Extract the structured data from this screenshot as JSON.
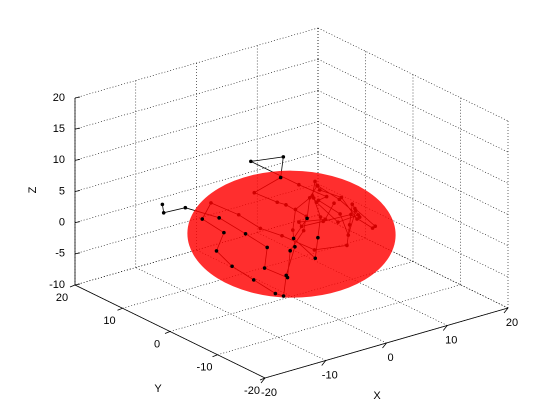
{
  "chart_data": {
    "type": "line3d",
    "xlabel": "X",
    "ylabel": "Y",
    "zlabel": "Z",
    "x": [
      -15,
      -14,
      -12,
      -8,
      -6,
      -4,
      -6,
      -3,
      -1,
      2,
      4,
      3,
      0,
      -3,
      -1,
      1,
      -2,
      2,
      5,
      6,
      8,
      7,
      9,
      11,
      10,
      8,
      6,
      4,
      2,
      0,
      -2,
      1,
      3,
      5,
      7,
      9,
      10,
      12,
      11,
      9,
      7,
      5,
      3,
      1,
      -1,
      -4,
      -6,
      -5,
      -7,
      -9,
      -10,
      -8,
      -10,
      -7,
      -4,
      -2,
      0,
      3,
      6,
      8,
      10,
      12,
      13,
      11,
      9,
      6,
      4,
      2,
      4,
      7
    ],
    "y": [
      8,
      9,
      7,
      5,
      2,
      0,
      -2,
      -3,
      -1,
      0,
      2,
      5,
      3,
      4,
      1,
      3,
      6,
      1,
      -1,
      2,
      0,
      -3,
      -2,
      0,
      3,
      5,
      3,
      -1,
      -3,
      -5,
      -3,
      -2,
      0,
      1,
      3,
      1,
      -1,
      1,
      4,
      6,
      4,
      2,
      3,
      1,
      -2,
      -4,
      -6,
      -3,
      -1,
      1,
      3,
      4,
      6,
      8,
      6,
      4,
      2,
      -1,
      -4,
      -2,
      0,
      2,
      -1,
      -3,
      -1,
      1,
      3,
      1,
      -2,
      0
    ],
    "z": [
      6,
      4,
      5,
      3,
      1,
      -1,
      -3,
      -5,
      -2,
      0,
      1,
      2,
      4,
      6,
      9,
      11,
      10,
      7,
      5,
      3,
      1,
      -1,
      2,
      0,
      -2,
      1,
      3,
      2,
      0,
      -2,
      1,
      3,
      5,
      6,
      4,
      3,
      0,
      -1,
      1,
      3,
      5,
      4,
      2,
      0,
      -1,
      -4,
      -6,
      -7,
      -5,
      -3,
      -1,
      1,
      3,
      4,
      2,
      0,
      -1,
      -3,
      -2,
      0,
      2,
      0,
      -2,
      -1,
      1,
      0,
      -1,
      1,
      2,
      3
    ],
    "color": "#000000",
    "ellipsoid": {
      "center": [
        0,
        0,
        0
      ],
      "radii": [
        13.5,
        13.5,
        8
      ],
      "color": "#ff0000"
    },
    "xlim": [
      -20,
      20
    ],
    "ylim": [
      -20,
      20
    ],
    "zlim": [
      -10,
      20
    ],
    "xticks": [
      -20,
      -10,
      0,
      10,
      20
    ],
    "yticks": [
      -20,
      -10,
      0,
      10,
      20
    ],
    "zticks": [
      -10,
      -5,
      0,
      5,
      10,
      15,
      20
    ],
    "grid": true
  }
}
